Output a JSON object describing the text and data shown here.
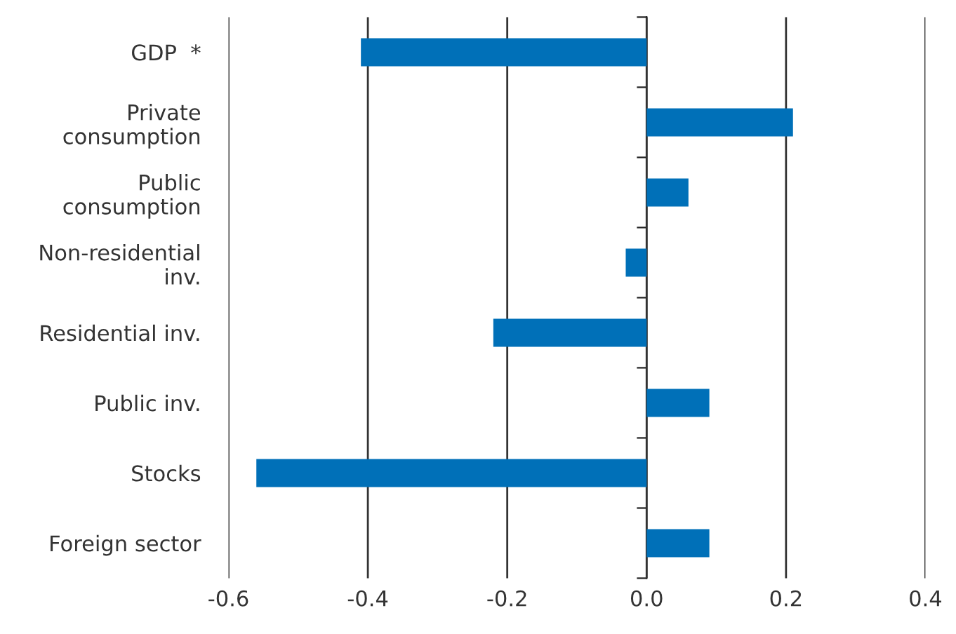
{
  "chart_data": {
    "type": "bar",
    "orientation": "horizontal",
    "categories": [
      "GDP  *",
      "Private\nconsumption",
      "Public\nconsumption",
      "Non-residential\ninv.",
      "Residential inv.",
      "Public inv.",
      "Stocks",
      "Foreign sector"
    ],
    "values": [
      -0.41,
      0.21,
      0.06,
      -0.03,
      -0.22,
      0.09,
      -0.56,
      0.09
    ],
    "color": "#0070b8",
    "xlim": [
      -0.6,
      0.4
    ],
    "xticks": [
      {
        "value": -0.6,
        "label": "-0.6"
      },
      {
        "value": -0.4,
        "label": "-0.4"
      },
      {
        "value": -0.2,
        "label": "-0.2"
      },
      {
        "value": 0.0,
        "label": "0.0"
      },
      {
        "value": 0.2,
        "label": "0.2"
      },
      {
        "value": 0.4,
        "label": "0.4"
      }
    ],
    "grid": "x"
  }
}
